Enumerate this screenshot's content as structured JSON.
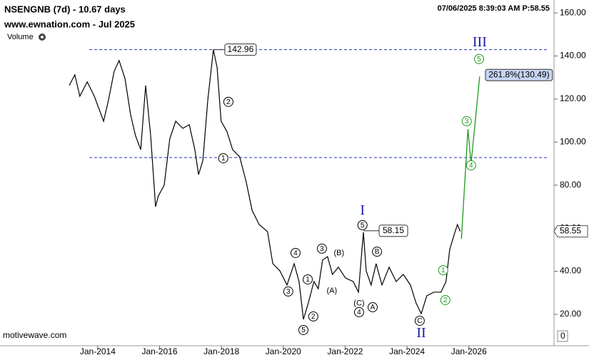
{
  "chart_data": {
    "type": "line",
    "title": "NSENGNB (7d) - 10.67 days",
    "subtitle": "www.ewnation.com  - Jul 2025",
    "timestamp": "07/06/2025 8:39:03 AM  P:58.55",
    "volume_label": "Volume",
    "watermark": "motivewave.com",
    "color": "#000000",
    "x": [
      2013.08,
      2013.26,
      2013.42,
      2013.66,
      2013.89,
      2014.19,
      2014.35,
      2014.53,
      2014.69,
      2014.88,
      2015.06,
      2015.22,
      2015.39,
      2015.55,
      2015.71,
      2015.87,
      2015.96,
      2016.15,
      2016.33,
      2016.52,
      2016.75,
      2016.96,
      2017.14,
      2017.26,
      2017.4,
      2017.56,
      2017.74,
      2017.86,
      2017.99,
      2018.18,
      2018.36,
      2018.59,
      2018.8,
      2018.99,
      2019.22,
      2019.49,
      2019.66,
      2019.89,
      2020.12,
      2020.35,
      2020.51,
      2020.65,
      2020.81,
      2020.99,
      2021.13,
      2021.27,
      2021.43,
      2021.59,
      2021.78,
      2022.01,
      2022.26,
      2022.43,
      2022.59,
      2022.68,
      2022.84,
      2023.0,
      2023.19,
      2023.42,
      2023.65,
      2023.88,
      2024.11,
      2024.29,
      2024.46,
      2024.64,
      2024.87,
      2025.1,
      2025.26,
      2025.38,
      2025.52,
      2025.63,
      2025.72
    ],
    "values": [
      126.3,
      131.3,
      121.3,
      128,
      121.3,
      109.7,
      119.7,
      132.9,
      137.9,
      129.6,
      113,
      103.1,
      96.5,
      126.3,
      103.1,
      70,
      75,
      80,
      101.5,
      109.7,
      106.4,
      108.1,
      96.5,
      84.9,
      91.5,
      119.7,
      142.96,
      134.6,
      109.7,
      104.8,
      96.5,
      93.2,
      81.6,
      68.3,
      61.7,
      58.4,
      43.5,
      40.2,
      33.6,
      43.5,
      35.2,
      17.7,
      25.3,
      35.2,
      31.9,
      45.2,
      46.8,
      38.5,
      41.9,
      36.9,
      35.2,
      30.3,
      58.15,
      40.2,
      33.6,
      43.5,
      33.6,
      41.9,
      35.2,
      38.5,
      33.6,
      25.3,
      20.3,
      28.6,
      30.3,
      30.3,
      35.2,
      50.1,
      56.8,
      61.7,
      58.55
    ],
    "projection": {
      "color": "#1f9a1f",
      "x": [
        2025.76,
        2025.97,
        2026.07,
        2026.35
      ],
      "values": [
        55,
        106,
        90,
        130.49
      ],
      "target": {
        "value": 130.49,
        "label": "261.8%(130.49)"
      }
    },
    "hlines": [
      {
        "value": 142.96,
        "color": "#2233bb"
      },
      {
        "value": 92.8,
        "color": "#2233bb"
      }
    ],
    "annotations": [
      {
        "text": "2",
        "x": 2018.225,
        "y": 118.7,
        "style": "circle",
        "color": "#000000"
      },
      {
        "text": "1",
        "x": 2018.06,
        "y": 92.5,
        "style": "circle",
        "color": "#000000"
      },
      {
        "text": "4",
        "x": 2020.395,
        "y": 48.5,
        "style": "circle",
        "color": "#000000"
      },
      {
        "text": "3",
        "x": 2020.16,
        "y": 30.6,
        "style": "circle",
        "color": "#000000"
      },
      {
        "text": "1",
        "x": 2020.79,
        "y": 36.2,
        "style": "circle",
        "color": "#000000"
      },
      {
        "text": "2",
        "x": 2020.97,
        "y": 19.0,
        "style": "circle",
        "color": "#000000"
      },
      {
        "text": "5",
        "x": 2020.65,
        "y": 12.7,
        "style": "circle",
        "color": "#000000"
      },
      {
        "text": "3",
        "x": 2021.25,
        "y": 50.5,
        "style": "circle",
        "color": "#000000"
      },
      {
        "text": "(B)",
        "x": 2021.8,
        "y": 48.5,
        "style": "plain",
        "color": "#000000"
      },
      {
        "text": "(A)",
        "x": 2021.57,
        "y": 31.0,
        "style": "plain",
        "color": "#000000"
      },
      {
        "text": "5",
        "x": 2022.56,
        "y": 61.4,
        "style": "circle",
        "color": "#000000"
      },
      {
        "text": "(C)",
        "x": 2022.45,
        "y": 25.3,
        "style": "plain",
        "color": "#000000"
      },
      {
        "text": "4",
        "x": 2022.45,
        "y": 21.0,
        "style": "circle",
        "color": "#000000"
      },
      {
        "text": "A",
        "x": 2022.89,
        "y": 23.3,
        "style": "circle",
        "color": "#000000"
      },
      {
        "text": "B",
        "x": 2023.03,
        "y": 49.1,
        "style": "circle",
        "color": "#000000"
      },
      {
        "text": "C",
        "x": 2024.41,
        "y": 17.0,
        "style": "circle",
        "color": "#000000"
      },
      {
        "text": "1",
        "x": 2025.17,
        "y": 40.5,
        "style": "circle",
        "color": "#1f9a1f"
      },
      {
        "text": "2",
        "x": 2025.24,
        "y": 26.6,
        "style": "circle",
        "color": "#1f9a1f"
      },
      {
        "text": "3",
        "x": 2025.93,
        "y": 109.7,
        "style": "circle",
        "color": "#1f9a1f"
      },
      {
        "text": "4",
        "x": 2026.07,
        "y": 89.2,
        "style": "circle",
        "color": "#1f9a1f"
      },
      {
        "text": "5",
        "x": 2026.33,
        "y": 138.6,
        "style": "circle",
        "color": "#1f9a1f"
      },
      {
        "text": "I",
        "x": 2022.56,
        "y": 68.0,
        "style": "roman",
        "color": "#1a1aaa"
      },
      {
        "text": "II",
        "x": 2024.46,
        "y": 11.1,
        "style": "roman",
        "color": "#1a1aaa"
      },
      {
        "text": "III",
        "x": 2026.35,
        "y": 146.2,
        "style": "roman",
        "color": "#1a1aaa"
      }
    ],
    "xlim": [
      2010.84,
      2028.73
    ],
    "ylim": [
      5.4,
      166
    ],
    "xticks": [
      {
        "value": 2014,
        "label": "Jan-2014"
      },
      {
        "value": 2016,
        "label": "Jan-2016"
      },
      {
        "value": 2018,
        "label": "Jan-2018"
      },
      {
        "value": 2020,
        "label": "Jan-2020"
      },
      {
        "value": 2022,
        "label": "Jan-2022"
      },
      {
        "value": 2024,
        "label": "Jan-2024"
      },
      {
        "value": 2026,
        "label": "Jan-2026"
      }
    ],
    "yticks": [
      {
        "value": 20,
        "label": "20.00"
      },
      {
        "value": 40,
        "label": "40.00"
      },
      {
        "value": 60,
        "label": "60.00"
      },
      {
        "value": 80,
        "label": "80.00"
      },
      {
        "value": 100,
        "label": "100.00"
      },
      {
        "value": 120,
        "label": "120.00"
      },
      {
        "value": 140,
        "label": "140.00"
      },
      {
        "value": 160,
        "label": "160.00"
      }
    ],
    "volume_ticks": [
      0
    ]
  }
}
